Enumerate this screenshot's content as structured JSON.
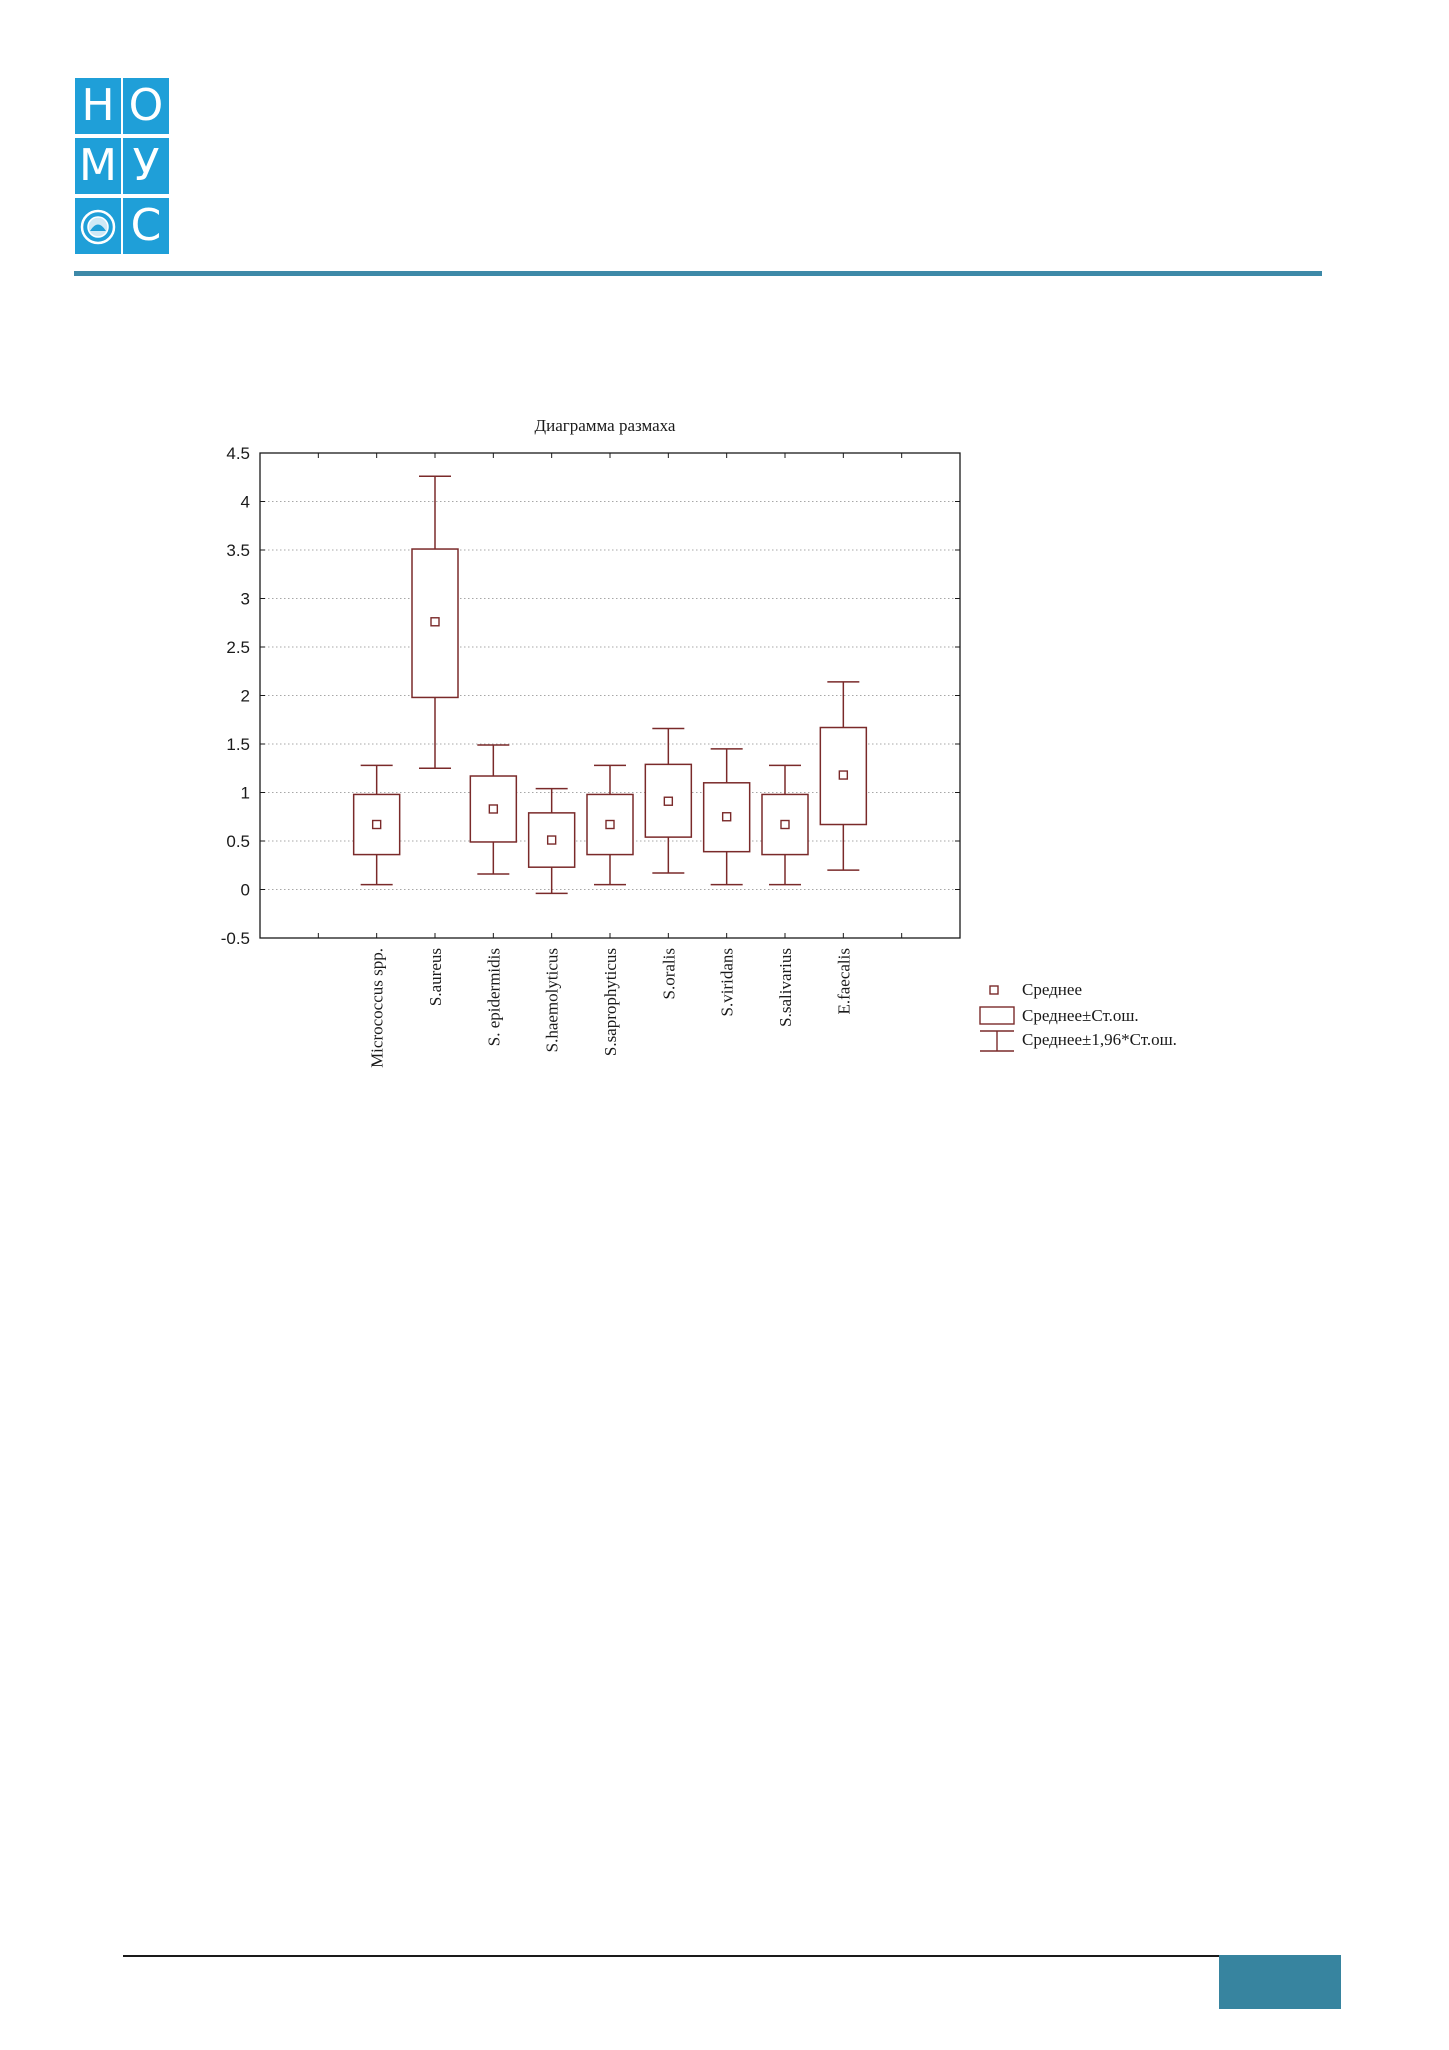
{
  "logo": {
    "letters": [
      "Н",
      "О",
      "М",
      "У",
      "",
      "С"
    ],
    "color": "#1f9fd8"
  },
  "header": {
    "rule_color": "#3d89a8"
  },
  "chart_data": {
    "type": "boxplot",
    "title": "Диаграмма размаха",
    "xlabel": "",
    "ylabel": "",
    "ylim": [
      -0.5,
      4.5
    ],
    "yticks": [
      "-0.5",
      "0",
      "0.5",
      "1",
      "1.5",
      "2",
      "2.5",
      "3",
      "3.5",
      "4",
      "4.5"
    ],
    "grid": true,
    "legend_position": "bottom-right",
    "color": "#7a2a2a",
    "categories": [
      "Micrococcus spp.",
      "S.aureus",
      "S. epidermidis",
      "S.haemolyticus",
      "S.saprophyticus",
      "S.oralis",
      "S.viridans",
      "S.salivarius",
      "E.faecalis"
    ],
    "mean": [
      0.67,
      2.76,
      0.83,
      0.51,
      0.67,
      0.91,
      0.75,
      0.67,
      1.18
    ],
    "se_low": [
      0.36,
      1.98,
      0.49,
      0.23,
      0.36,
      0.54,
      0.39,
      0.36,
      0.67
    ],
    "se_high": [
      0.98,
      3.51,
      1.17,
      0.79,
      0.98,
      1.29,
      1.1,
      0.98,
      1.67
    ],
    "ci_low": [
      0.05,
      1.25,
      0.16,
      -0.04,
      0.05,
      0.17,
      0.05,
      0.05,
      0.2
    ],
    "ci_high": [
      1.28,
      4.26,
      1.49,
      1.04,
      1.28,
      1.66,
      1.45,
      1.28,
      2.14
    ],
    "legend": [
      "Среднее",
      "Среднее±Ст.ош.",
      "Среднее±1,96*Ст.ош."
    ]
  },
  "footer": {
    "rule_color": "#1a1a1a",
    "block_color": "#37849f"
  }
}
